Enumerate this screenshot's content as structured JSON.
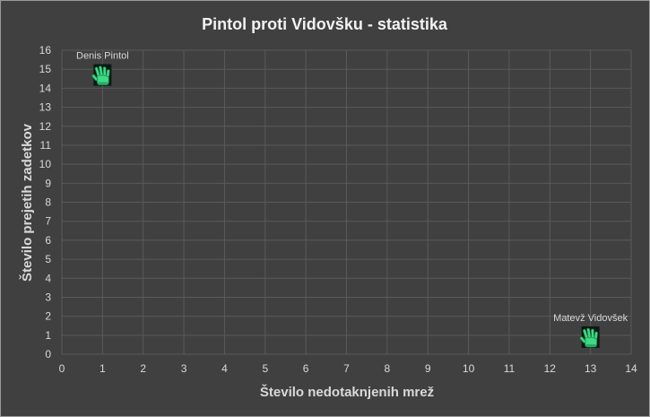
{
  "chart_data": {
    "type": "scatter",
    "title": "Pintol proti Vidovšku - statistika",
    "xlabel": "Število nedotaknjenih mrež",
    "ylabel": "Število prejetih zadetkov",
    "xlim": [
      0,
      14
    ],
    "ylim": [
      0,
      16
    ],
    "x_ticks": [
      "0",
      "1",
      "2",
      "3",
      "4",
      "5",
      "6",
      "7",
      "8",
      "9",
      "10",
      "11",
      "12",
      "13",
      "14"
    ],
    "y_ticks": [
      "0",
      "1",
      "2",
      "3",
      "4",
      "5",
      "6",
      "7",
      "8",
      "9",
      "10",
      "11",
      "12",
      "13",
      "14",
      "15",
      "16"
    ],
    "grid": true,
    "marker": "goalkeeper-glove-icon",
    "points": [
      {
        "x": 1,
        "y": 14.7,
        "label": "Denis Pintol"
      },
      {
        "x": 13,
        "y": 0.9,
        "label": "Matevž Vidovšek"
      }
    ],
    "colors": {
      "background": "#404040",
      "grid": "#5a5a5a",
      "text": "#d9d9d9",
      "marker": "#3ddc84"
    }
  }
}
